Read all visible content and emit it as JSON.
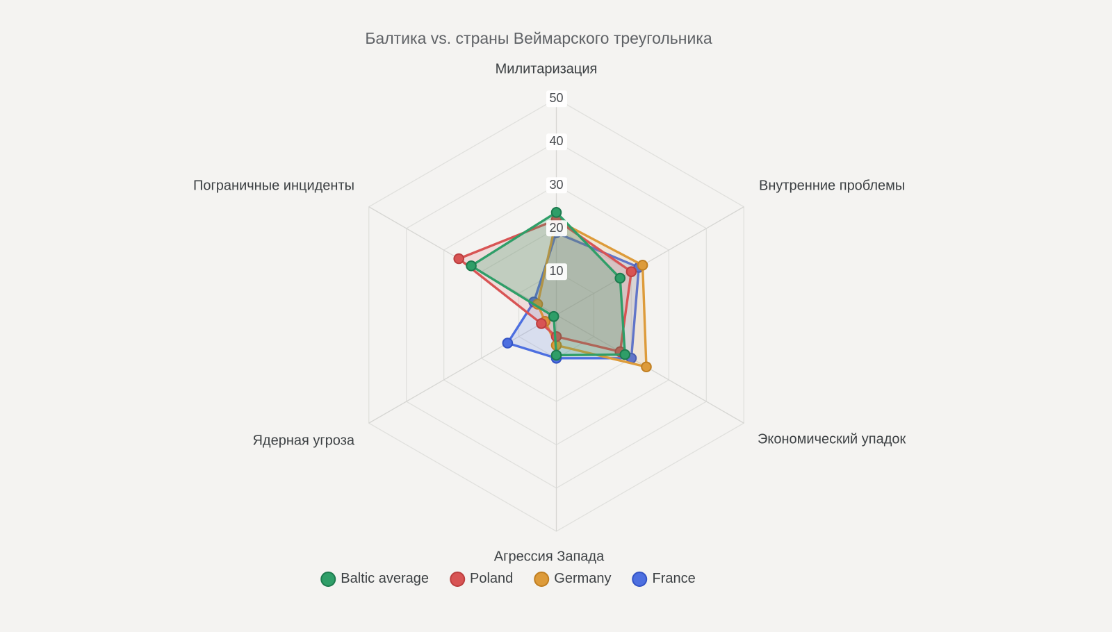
{
  "title": "Балтика vs. страны Веймарского треугольника",
  "chart_data": {
    "type": "radar",
    "title": "Балтика vs. страны Веймарского треугольника",
    "axes": [
      "Милитаризация",
      "Внутренние проблемы",
      "Экономический упадок",
      "Агрессия Запада",
      "Ядерная угроза",
      "Пограничные инциденты"
    ],
    "radial_ticks": [
      10,
      20,
      30,
      40,
      50
    ],
    "radial_range": [
      0,
      50
    ],
    "grid_shape": "hexagon",
    "legend_position": "bottom",
    "series": [
      {
        "name": "Baltic average",
        "color": "#2f9e68",
        "marker_border": "#1d7a4e",
        "fill": "rgba(47,158,104,0.24)",
        "values": [
          23.7,
          17,
          18.3,
          9.3,
          0.7,
          22.7
        ]
      },
      {
        "name": "Poland",
        "color": "#d85454",
        "marker_border": "#bb3f3f",
        "fill": "rgba(216,84,84,0.14)",
        "values": [
          22,
          20,
          17,
          5,
          4,
          26
        ]
      },
      {
        "name": "Germany",
        "color": "#dd9b3a",
        "marker_border": "#c07f22",
        "fill": "rgba(221,155,58,0.14)",
        "values": [
          22,
          23,
          24,
          7,
          3,
          5
        ]
      },
      {
        "name": "France",
        "color": "#4d6fe0",
        "marker_border": "#3353c4",
        "fill": "rgba(77,111,224,0.16)",
        "values": [
          19,
          22,
          20,
          10,
          13,
          6
        ]
      }
    ]
  },
  "colors": {
    "background": "#f4f3f1",
    "ring_grid": "#e0e0dd",
    "spoke_grid": "#d6d6d3",
    "axis_text": "#3c4043",
    "title_text": "#5f6266",
    "tick_text": "#46494d",
    "tick_chip": "#ffffff"
  }
}
